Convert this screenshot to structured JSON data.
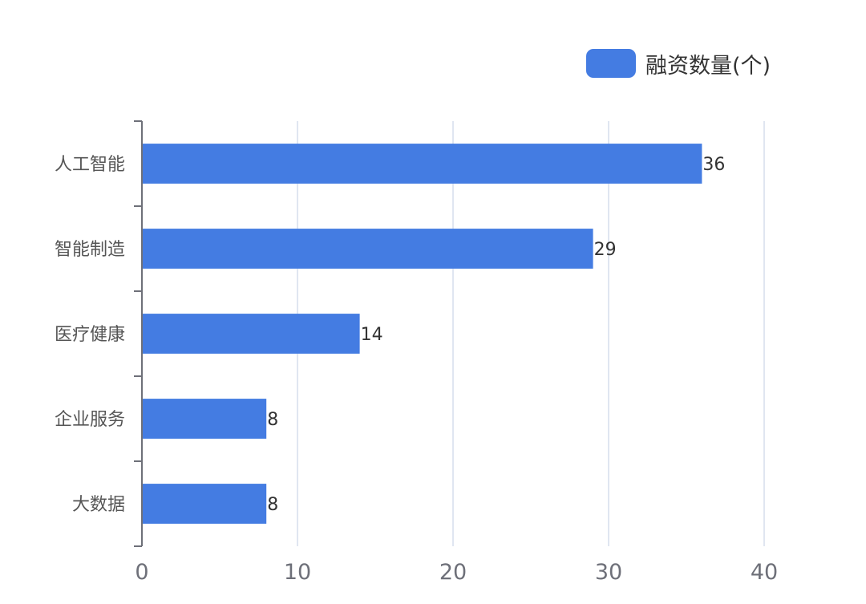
{
  "chart_data": {
    "type": "bar",
    "orientation": "horizontal",
    "categories": [
      "人工智能",
      "智能制造",
      "医疗健康",
      "企业服务",
      "大数据"
    ],
    "series": [
      {
        "name": "融资数量(个)",
        "values": [
          36,
          29,
          14,
          8,
          8
        ],
        "color": "#447ce2"
      }
    ],
    "xlim": [
      0,
      40
    ],
    "x_ticks": [
      "0",
      "10",
      "20",
      "30",
      "40"
    ],
    "grid": true,
    "legend": "top-right",
    "data_labels": true
  }
}
